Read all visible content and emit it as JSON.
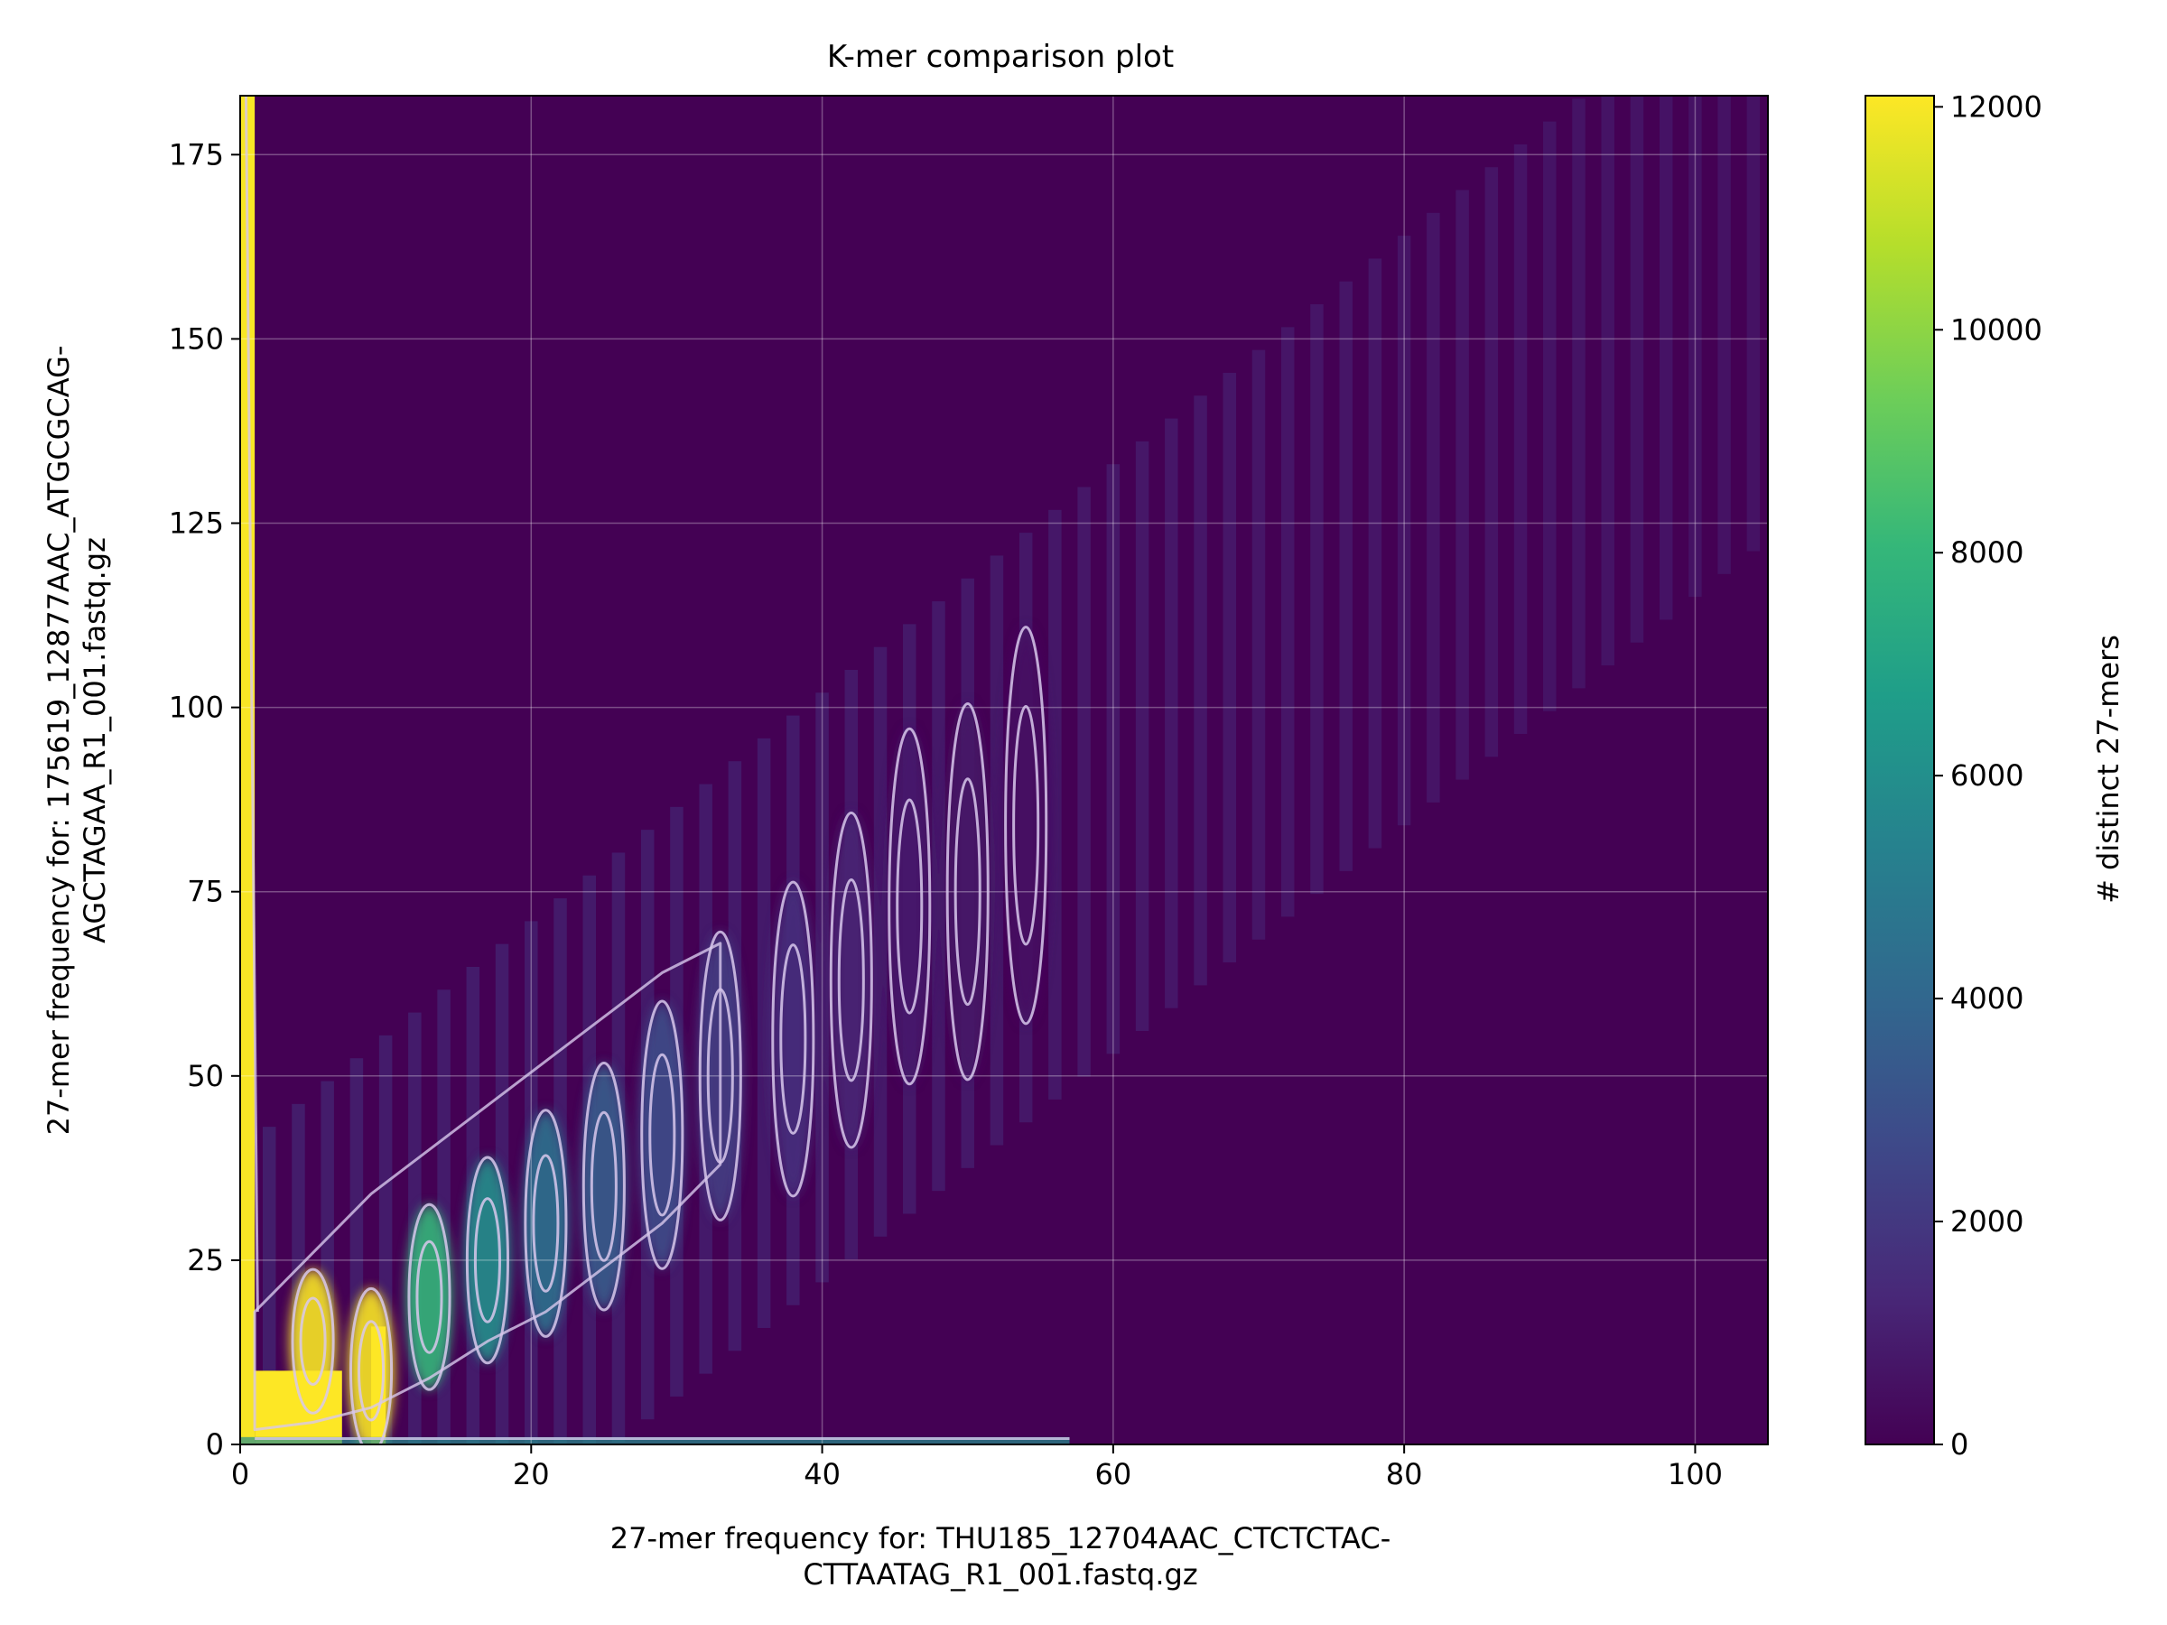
{
  "chart_data": {
    "type": "heatmap",
    "title": "K-mer comparison plot",
    "xlabel_lines": [
      "27-mer frequency for: THU185_12704AAC_CTCTCTAC-",
      "CTTAATAG_R1_001.fastq.gz"
    ],
    "ylabel_lines": [
      "27-mer frequency for: 175619_12877AAC_ATGCGCAG-",
      "AGCTAGAA_R1_001.fastq.gz"
    ],
    "xlim": [
      0,
      105
    ],
    "ylim": [
      0,
      183
    ],
    "xticks": [
      0,
      20,
      40,
      60,
      80,
      100
    ],
    "yticks": [
      0,
      25,
      50,
      75,
      100,
      125,
      150,
      175
    ],
    "grid": true,
    "colorbar": {
      "label": "# distinct 27-mers",
      "range": [
        0,
        12100
      ],
      "ticks": [
        0,
        2000,
        4000,
        6000,
        8000,
        10000,
        12000
      ],
      "colormap": "viridis"
    },
    "colormap_stops": [
      "#440154",
      "#482878",
      "#3e4989",
      "#31688e",
      "#26828e",
      "#1f9e89",
      "#35b779",
      "#6ece58",
      "#b5de2b",
      "#fde725"
    ],
    "background_color": "#440154",
    "contour_color": "#d8c8ec",
    "dense_peaks": [
      {
        "x": 5,
        "y": 14,
        "value": 12000
      },
      {
        "x": 9,
        "y": 10,
        "value": 12000
      },
      {
        "x": 13,
        "y": 20,
        "value": 8000
      },
      {
        "x": 17,
        "y": 25,
        "value": 6000
      },
      {
        "x": 21,
        "y": 30,
        "value": 4500
      },
      {
        "x": 25,
        "y": 35,
        "value": 3500
      },
      {
        "x": 29,
        "y": 42,
        "value": 2800
      },
      {
        "x": 33,
        "y": 50,
        "value": 2200
      },
      {
        "x": 38,
        "y": 55,
        "value": 1600
      },
      {
        "x": 42,
        "y": 63,
        "value": 1200
      },
      {
        "x": 46,
        "y": 73,
        "value": 900
      },
      {
        "x": 50,
        "y": 75,
        "value": 700
      },
      {
        "x": 54,
        "y": 84,
        "value": 550
      }
    ],
    "left_edge_band": {
      "x": [
        0,
        1
      ],
      "y": [
        0,
        183
      ],
      "value": 12000
    },
    "bottom_edge_band": {
      "x": [
        0,
        57
      ],
      "y": [
        0,
        1
      ],
      "value": 6000
    }
  }
}
